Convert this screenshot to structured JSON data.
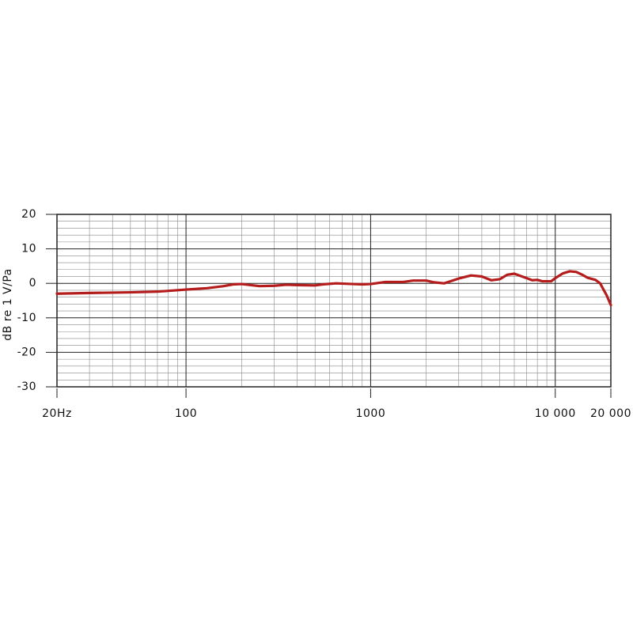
{
  "chart_data": {
    "type": "line",
    "y_label": "dB re 1 V/Pa",
    "xscale": "log",
    "xlim": [
      20,
      20000
    ],
    "xticks": [
      {
        "value": 20,
        "label": "20Hz"
      },
      100,
      1000,
      {
        "value": 10000,
        "label": "10 000"
      },
      {
        "value": 20000,
        "label": "20 000"
      }
    ],
    "ylim": [
      -30,
      20
    ],
    "yticks": [
      -30,
      -20,
      -10,
      0,
      10,
      20
    ],
    "grid": true,
    "color": "#b51c1c",
    "x": [
      20,
      30,
      50,
      70,
      100,
      130,
      160,
      180,
      200,
      250,
      300,
      350,
      400,
      500,
      550,
      650,
      800,
      900,
      1000,
      1200,
      1500,
      1700,
      2000,
      2200,
      2500,
      2700,
      3000,
      3500,
      4000,
      4500,
      5000,
      5500,
      6000,
      7000,
      7500,
      8000,
      8500,
      9500,
      10000,
      11000,
      12000,
      13000,
      14000,
      15000,
      16500,
      17500,
      19000,
      20000
    ],
    "values": [
      -3,
      -2.8,
      -2.6,
      -2.4,
      -1.8,
      -1.4,
      -0.8,
      -0.3,
      -0.2,
      -0.8,
      -0.7,
      -0.4,
      -0.5,
      -0.6,
      -0.3,
      0,
      -0.2,
      -0.3,
      -0.2,
      0.4,
      0.4,
      0.8,
      0.8,
      0.3,
      0,
      0.6,
      1.4,
      2.3,
      2,
      0.9,
      1.2,
      2.5,
      2.8,
      1.5,
      0.9,
      1,
      0.6,
      0.6,
      1.5,
      2.9,
      3.5,
      3.3,
      2.5,
      1.6,
      1,
      0,
      -3.5,
      -6.3
    ]
  }
}
